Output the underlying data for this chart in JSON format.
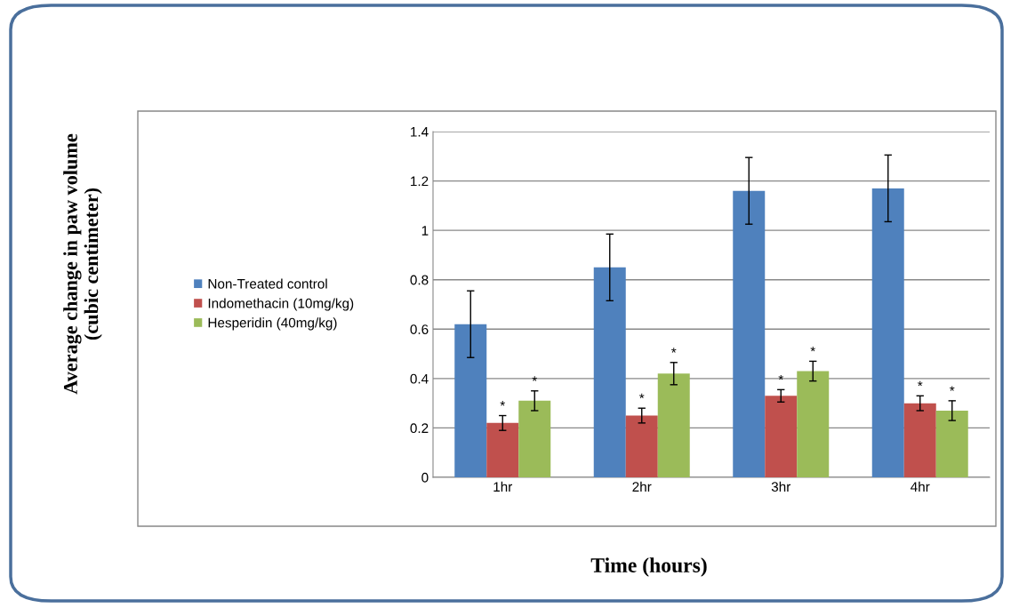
{
  "chart_data": {
    "type": "bar",
    "xlabel": "Time (hours)",
    "annotations": [
      "Average change in paw volume\n(cubic centimeter)"
    ],
    "categories": [
      "1hr",
      "2hr",
      "3hr",
      "4hr"
    ],
    "series": [
      {
        "name": "Non-Treated control",
        "color": "#4f81bd",
        "values": [
          0.62,
          0.85,
          1.16,
          1.17
        ],
        "errors": [
          0.135,
          0.135,
          0.135,
          0.135
        ]
      },
      {
        "name": "Indomethacin (10mg/kg)",
        "color": "#c0504d",
        "values": [
          0.22,
          0.25,
          0.33,
          0.3
        ],
        "errors": [
          0.03,
          0.03,
          0.025,
          0.03
        ],
        "value_labels": [
          "*",
          "*",
          "*",
          "*"
        ]
      },
      {
        "name": "Hesperidin (40mg/kg)",
        "color": "#9bbb59",
        "values": [
          0.31,
          0.42,
          0.43,
          0.27
        ],
        "errors": [
          0.04,
          0.045,
          0.04,
          0.04
        ],
        "value_labels": [
          "*",
          "*",
          "*",
          "*"
        ]
      }
    ],
    "ylim": [
      0,
      1.4
    ],
    "yticks": [
      0,
      0.2,
      0.4,
      0.6,
      0.8,
      1,
      1.2,
      1.4
    ],
    "grid": "y",
    "legend": "left"
  }
}
